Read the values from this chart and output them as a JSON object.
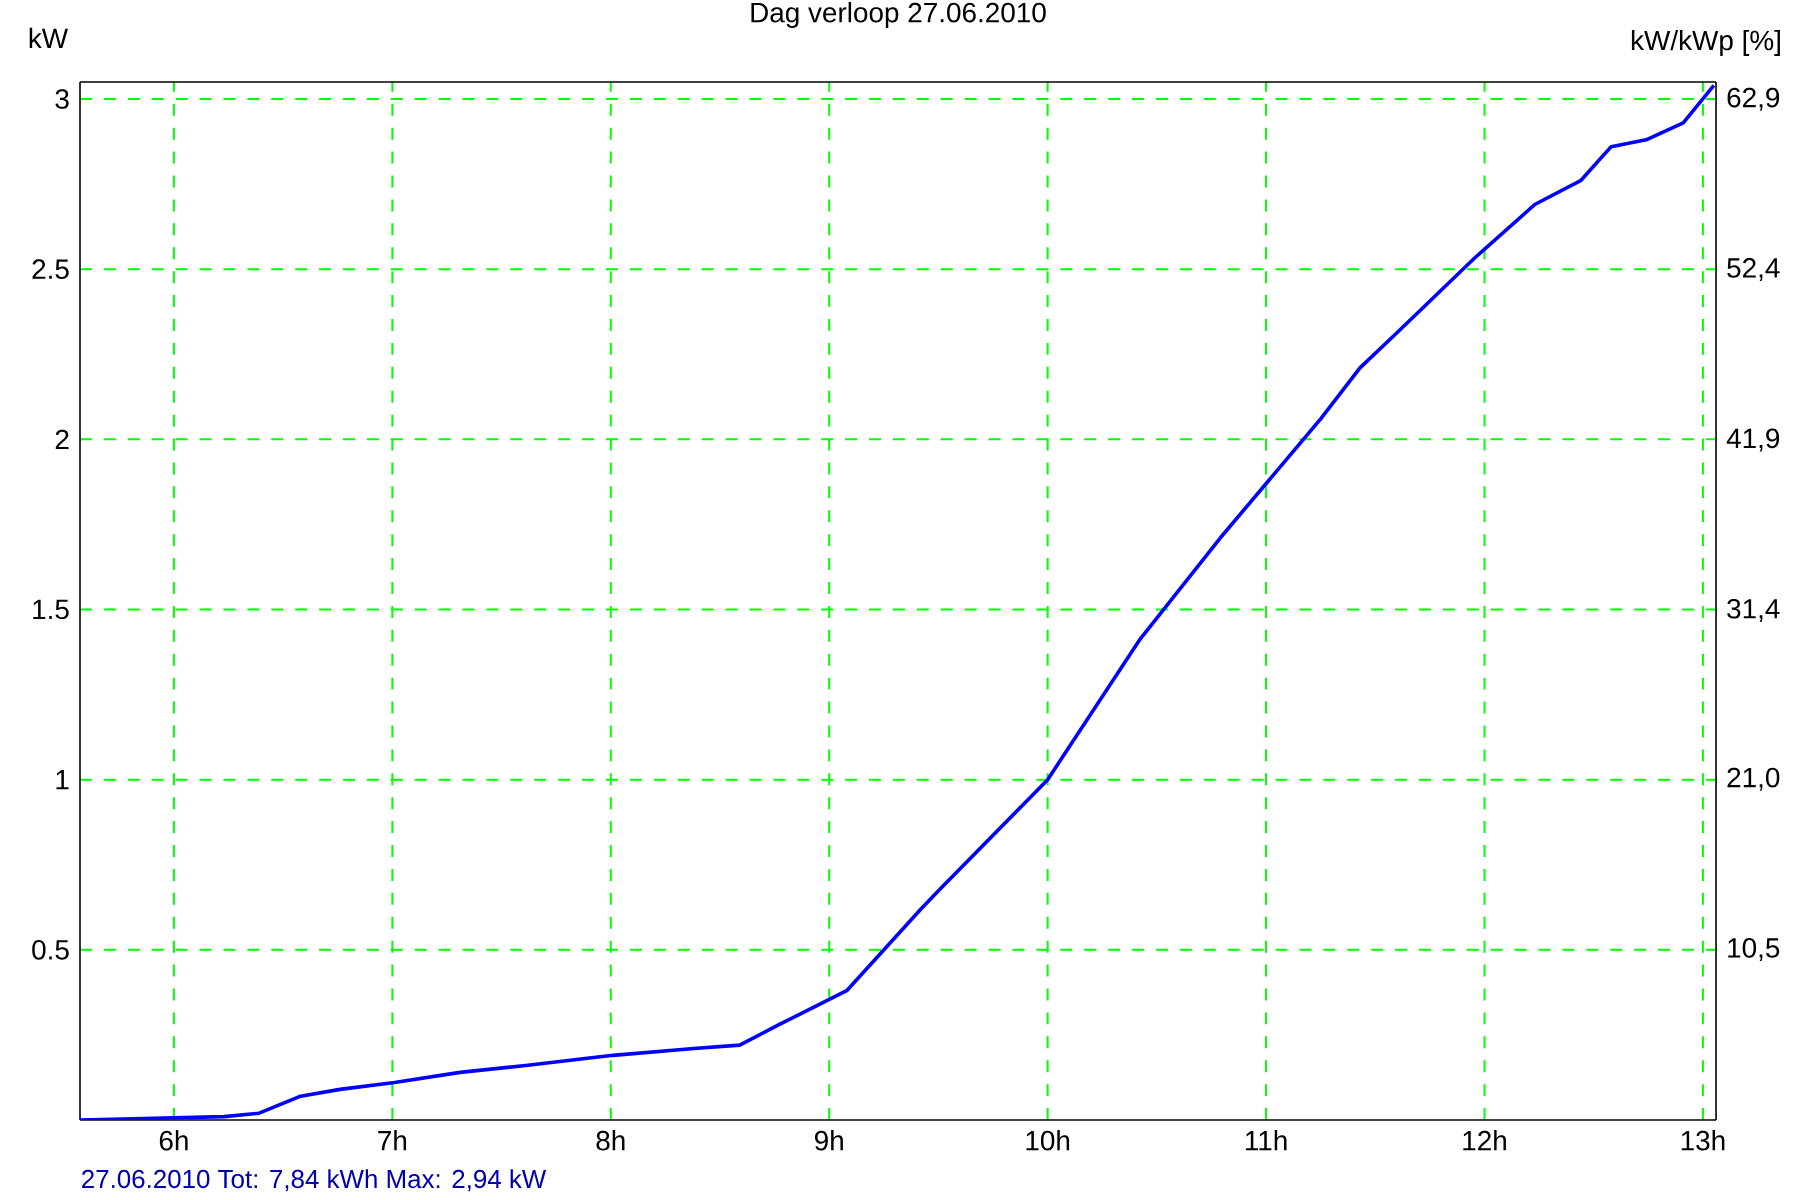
{
  "chart_data": {
    "type": "line",
    "title": "Dag verloop 27.06.2010",
    "ylabel": "kW",
    "y2label": "kW/kWp [%]",
    "annotations": [
      "27.06.2010 Tot: 7,84 kWh Max: 2,94 kW"
    ],
    "x": [
      5.57,
      5.91,
      6.23,
      6.39,
      6.58,
      6.76,
      7.01,
      7.31,
      7.61,
      8.01,
      8.38,
      8.59,
      8.77,
      9.08,
      9.42,
      9.51,
      10.0,
      10.42,
      10.79,
      11.25,
      11.43,
      11.61,
      11.95,
      12.23,
      12.44,
      12.58,
      12.74,
      12.91,
      13.05
    ],
    "values": [
      0,
      0.005,
      0.01,
      0.02,
      0.07,
      0.09,
      0.11,
      0.14,
      0.16,
      0.19,
      0.21,
      0.22,
      0.28,
      0.38,
      0.62,
      0.68,
      1.0,
      1.41,
      1.71,
      2.06,
      2.21,
      2.32,
      2.53,
      2.69,
      2.76,
      2.86,
      2.88,
      2.93,
      3.04
    ],
    "color": "#0000ff",
    "xlim": [
      5.57,
      13.06
    ],
    "ylim": [
      0,
      3.05
    ],
    "y2lim": [
      0,
      63.96
    ],
    "xticks": [
      {
        "value": 6,
        "label": "6h"
      },
      {
        "value": 7,
        "label": "7h"
      },
      {
        "value": 8,
        "label": "8h"
      },
      {
        "value": 9,
        "label": "9h"
      },
      {
        "value": 10,
        "label": "10h"
      },
      {
        "value": 11,
        "label": "11h"
      },
      {
        "value": 12,
        "label": "12h"
      },
      {
        "value": 13,
        "label": "13h"
      }
    ],
    "yticks": [
      0.5,
      1,
      1.5,
      2,
      2.5,
      3
    ],
    "y2ticks": [
      {
        "value": 10.5,
        "label": "10,5"
      },
      {
        "value": 21.0,
        "label": "21,0"
      },
      {
        "value": 31.4,
        "label": "31,4"
      },
      {
        "value": 41.9,
        "label": "41,9"
      },
      {
        "value": 52.4,
        "label": "52,4"
      },
      {
        "value": 62.9,
        "label": "62,9"
      }
    ],
    "grid": true
  }
}
